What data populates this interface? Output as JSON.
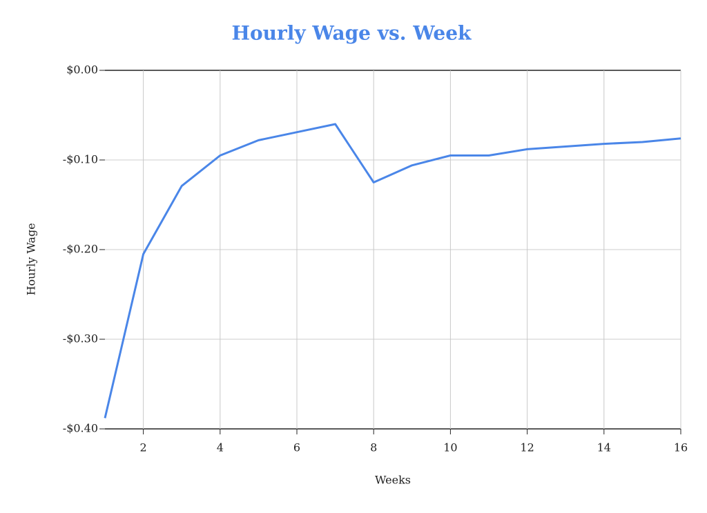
{
  "chart_data": {
    "type": "line",
    "title": "Hourly Wage vs. Week",
    "x_label": "Weeks",
    "y_label": "Hourly Wage",
    "x": [
      1,
      2,
      3,
      4,
      5,
      6,
      7,
      8,
      9,
      10,
      11,
      12,
      13,
      14,
      15,
      16
    ],
    "series": [
      {
        "name": "Hourly Wage",
        "color": "#4a86e8",
        "values": [
          -0.388,
          -0.205,
          -0.129,
          -0.095,
          -0.078,
          -0.069,
          -0.06,
          -0.125,
          -0.106,
          -0.095,
          -0.095,
          -0.088,
          -0.085,
          -0.082,
          -0.08,
          -0.076
        ]
      }
    ],
    "xlim": [
      1,
      16
    ],
    "xticks": [
      2,
      4,
      6,
      8,
      10,
      12,
      14,
      16
    ],
    "ylim": [
      -0.4,
      0
    ],
    "yticks": [
      {
        "value": -0.4,
        "label": "-$0.40"
      },
      {
        "value": -0.3,
        "label": "-$0.30"
      },
      {
        "value": -0.2,
        "label": "-$0.20"
      },
      {
        "value": -0.1,
        "label": "-$0.10"
      },
      {
        "value": 0,
        "label": "$0.00"
      }
    ],
    "grid": true
  }
}
